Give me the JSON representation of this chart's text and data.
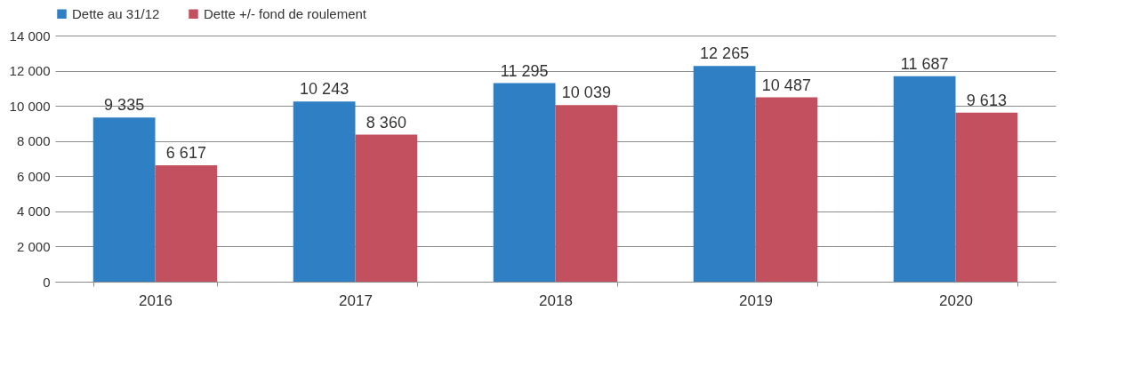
{
  "chart_data": {
    "type": "bar",
    "categories": [
      "2016",
      "2017",
      "2018",
      "2019",
      "2020"
    ],
    "series": [
      {
        "name": "Dette au 31/12",
        "color": "#2f7fc4",
        "values": [
          9335,
          10243,
          11295,
          12265,
          11687
        ],
        "value_labels": [
          "9 335",
          "10 243",
          "11 295",
          "12 265",
          "11 687"
        ]
      },
      {
        "name": "Dette +/- fond de roulement",
        "color": "#c2505f",
        "values": [
          6617,
          8360,
          10039,
          10487,
          9613
        ],
        "value_labels": [
          "6 617",
          "8 360",
          "10 039",
          "10 487",
          "9 613"
        ]
      }
    ],
    "ylim": [
      0,
      14000
    ],
    "yticks": [
      0,
      {
        "value": 2000,
        "label": "2 000"
      },
      {
        "value": 4000,
        "label": "4 000"
      },
      {
        "value": 6000,
        "label": "6 000"
      },
      {
        "value": 8000,
        "label": "8 000"
      },
      {
        "value": 10000,
        "label": "10 000"
      },
      {
        "value": 12000,
        "label": "12 000"
      },
      {
        "value": 14000,
        "label": "14 000"
      }
    ],
    "grid": "y",
    "legend": "top"
  }
}
